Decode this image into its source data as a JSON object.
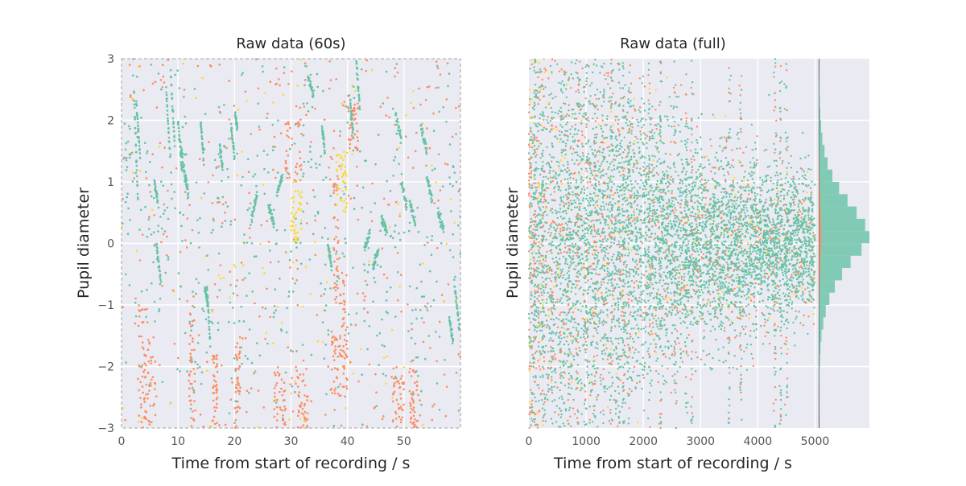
{
  "colors": {
    "green": "#66c2a5",
    "orange": "#fc8d62",
    "yellow": "#ffd92f",
    "panel_background": "#eaeaf2",
    "grid": "#ffffff"
  },
  "chart_data": [
    {
      "type": "scatter",
      "title": "Raw data (60s)",
      "xlabel": "Time from start of recording / s",
      "ylabel": "Pupil diameter",
      "xlim": [
        0,
        60
      ],
      "ylim": [
        -3,
        3
      ],
      "xticks": [
        0,
        10,
        20,
        30,
        40,
        50
      ],
      "yticks": [
        -3,
        -2,
        -1,
        0,
        1,
        2,
        3
      ],
      "xtick_labels": [
        "0",
        "10",
        "20",
        "30",
        "40",
        "50"
      ],
      "ytick_labels": [
        "−3",
        "−2",
        "−1",
        "0",
        "1",
        "2",
        "3"
      ],
      "grid": true,
      "border": "dashed",
      "series_colors": [
        "green",
        "orange",
        "yellow"
      ],
      "trace_segments": [
        [
          2.2,
          2.9,
          2.5,
          0.7
        ],
        [
          2.6,
          3.3,
          2.3,
          1.4
        ],
        [
          5.8,
          6.4,
          1.0,
          0.7
        ],
        [
          6.2,
          6.9,
          0.0,
          -0.6
        ],
        [
          7.9,
          8.6,
          2.5,
          1.4
        ],
        [
          8.7,
          9.4,
          2.8,
          1.6
        ],
        [
          10.0,
          10.7,
          2.0,
          1.2
        ],
        [
          10.5,
          11.3,
          1.6,
          1.0
        ],
        [
          11.3,
          11.8,
          1.1,
          0.8
        ],
        [
          14.0,
          14.5,
          2.0,
          1.4
        ],
        [
          14.7,
          15.3,
          -0.7,
          -1.0
        ],
        [
          15.1,
          15.7,
          -0.7,
          -1.6
        ],
        [
          17.4,
          17.9,
          1.6,
          1.2
        ],
        [
          19.4,
          20.0,
          1.9,
          1.4
        ],
        [
          20.1,
          20.5,
          2.1,
          1.9
        ],
        [
          23.0,
          24.0,
          0.4,
          0.8
        ],
        [
          26.0,
          27.0,
          0.6,
          0.3
        ],
        [
          27.5,
          28.5,
          0.8,
          1.1
        ],
        [
          33.0,
          34.0,
          2.7,
          2.4
        ],
        [
          35.5,
          36.0,
          1.9,
          1.5
        ],
        [
          36.5,
          37.2,
          0.0,
          -0.4
        ],
        [
          40.5,
          41.0,
          2.3,
          1.8
        ],
        [
          41.5,
          42.2,
          3.0,
          2.2
        ],
        [
          43.0,
          44.0,
          -0.1,
          0.2
        ],
        [
          44.5,
          45.5,
          -0.4,
          -0.1
        ],
        [
          46.0,
          47.0,
          0.4,
          0.2
        ],
        [
          48.5,
          49.5,
          2.1,
          1.7
        ],
        [
          49.5,
          50.5,
          1.0,
          0.6
        ],
        [
          51.0,
          52.0,
          0.7,
          0.3
        ],
        [
          53.0,
          54.0,
          1.9,
          1.5
        ],
        [
          54.0,
          55.0,
          1.1,
          0.7
        ],
        [
          56.0,
          57.0,
          0.5,
          0.2
        ],
        [
          58.0,
          58.7,
          -1.2,
          -1.6
        ],
        [
          58.9,
          59.8,
          -0.6,
          -1.4
        ]
      ],
      "scatter_clusters": [
        [
          3.0,
          5.0,
          -3.0,
          -1.0,
          "orange"
        ],
        [
          4.0,
          6.0,
          -3.0,
          -1.5,
          "orange"
        ],
        [
          12.0,
          13.0,
          -3.0,
          -1.0,
          "orange"
        ],
        [
          16.0,
          17.0,
          -3.0,
          -1.8,
          "orange"
        ],
        [
          20.0,
          21.0,
          -3.0,
          -1.5,
          "orange"
        ],
        [
          27.0,
          29.0,
          -3.0,
          -2.0,
          "orange"
        ],
        [
          29.0,
          32.0,
          1.0,
          2.0,
          "orange"
        ],
        [
          31.0,
          33.0,
          -3.0,
          -2.0,
          "orange"
        ],
        [
          37.0,
          39.0,
          -2.5,
          -1.5,
          "orange"
        ],
        [
          37.5,
          38.5,
          -1.0,
          1.0,
          "orange"
        ],
        [
          39.0,
          40.0,
          -2.5,
          -0.5,
          "orange"
        ],
        [
          40.0,
          42.0,
          1.5,
          2.3,
          "orange"
        ],
        [
          48.0,
          50.0,
          -3.0,
          -2.0,
          "orange"
        ],
        [
          51.0,
          53.0,
          -3.0,
          -2.0,
          "orange"
        ],
        [
          30.0,
          32.0,
          0.0,
          1.0,
          "yellow"
        ],
        [
          38.0,
          40.0,
          0.5,
          1.5,
          "yellow"
        ]
      ]
    },
    {
      "type": "scatter",
      "title": "Raw data (full)",
      "xlabel": "Time from start of recording / s",
      "ylabel": "Pupil diameter",
      "xlim": [
        0,
        5950
      ],
      "ylim": [
        -3,
        3
      ],
      "xticks": [
        0,
        1000,
        2000,
        3000,
        4000,
        5000
      ],
      "xtick_labels": [
        "0",
        "1000",
        "2000",
        "3000",
        "4000",
        "5000"
      ],
      "yticks": [
        -3,
        -2,
        -1,
        0,
        1,
        2,
        3
      ],
      "ytick_labels": [],
      "grid": true,
      "data_extent": [
        0,
        5000
      ],
      "series_colors": [
        "green",
        "orange",
        "yellow"
      ],
      "spread_profile": [
        [
          0,
          2.0
        ],
        [
          500,
          1.7
        ],
        [
          1000,
          1.5
        ],
        [
          1500,
          1.4
        ],
        [
          2000,
          1.1
        ],
        [
          2500,
          0.9
        ],
        [
          3000,
          0.75
        ],
        [
          3500,
          0.7
        ],
        [
          4000,
          0.65
        ],
        [
          4500,
          0.6
        ],
        [
          5000,
          0.5
        ]
      ],
      "vertical_streaks": [
        100,
        250,
        400,
        550,
        700,
        850,
        1000,
        1150,
        1300,
        1450,
        1580,
        1650,
        1750,
        2100,
        2300,
        2550,
        2750,
        2850,
        3500,
        3700,
        4300,
        4400,
        4500
      ],
      "marginal_histogram": {
        "type": "histogram",
        "orientation": "horizontal",
        "baseline_x": 5070,
        "color": "green",
        "bins": [
          -3.0,
          -2.8,
          -2.6,
          -2.4,
          -2.2,
          -2.0,
          -1.8,
          -1.6,
          -1.4,
          -1.2,
          -1.0,
          -0.8,
          -0.6,
          -0.4,
          -0.2,
          0.0,
          0.2,
          0.4,
          0.6,
          0.8,
          1.0,
          1.2,
          1.4,
          1.6,
          1.8,
          2.0,
          2.2,
          2.4,
          2.6,
          2.8,
          3.0
        ],
        "counts": [
          0,
          1,
          2,
          4,
          8,
          14,
          24,
          40,
          70,
          110,
          170,
          260,
          380,
          520,
          700,
          830,
          760,
          620,
          470,
          330,
          220,
          140,
          90,
          55,
          35,
          20,
          12,
          7,
          4,
          2
        ]
      }
    }
  ]
}
